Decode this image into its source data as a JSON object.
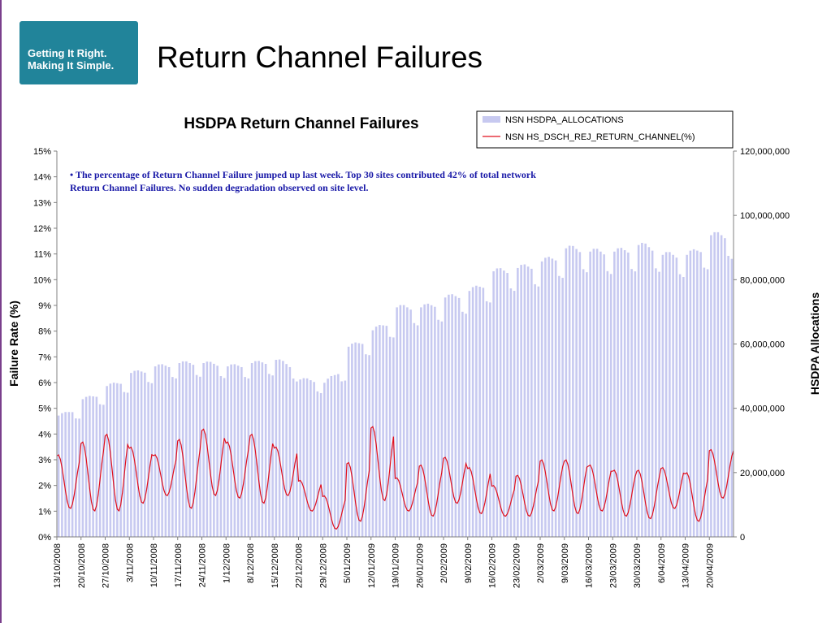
{
  "slide": {
    "title": "Return Channel Failures",
    "logo": {
      "line1": "Getting It Right.",
      "line2": "Making It Simple."
    }
  },
  "colors": {
    "logo_bg": "#21849a",
    "bar": "#c7c9f0",
    "line": "#e0101e",
    "annotation": "#1a1aa8"
  },
  "chart_data": {
    "type": "bar+line",
    "title": "HSDPA Return Channel Failures",
    "annotation": "• The percentage of Return Channel Failure jumped up last week. Top 30 sites contributed 42% of total network Return Channel Failures. No sudden degradation observed on site level.",
    "ylabel_left": "Failure Rate (%)",
    "ylabel_right": "HSDPA Allocations",
    "ylim_left": [
      0,
      15
    ],
    "ylim_right": [
      0,
      120000000
    ],
    "yticks_left": [
      "0%",
      "1%",
      "2%",
      "3%",
      "4%",
      "5%",
      "6%",
      "7%",
      "8%",
      "9%",
      "10%",
      "11%",
      "12%",
      "13%",
      "14%",
      "15%"
    ],
    "yticks_right": [
      "0",
      "20,000,000",
      "40,000,000",
      "60,000,000",
      "80,000,000",
      "100,000,000",
      "120,000,000"
    ],
    "xtick_labels": [
      "13/10/2008",
      "20/10/2008",
      "27/10/2008",
      "3/11/2008",
      "10/11/2008",
      "17/11/2008",
      "24/11/2008",
      "1/12/2008",
      "8/12/2008",
      "15/12/2008",
      "22/12/2008",
      "29/12/2008",
      "5/01/2009",
      "12/01/2009",
      "19/01/2009",
      "26/01/2009",
      "2/02/2009",
      "9/02/2009",
      "16/02/2009",
      "23/02/2009",
      "2/03/2009",
      "9/03/2009",
      "16/03/2009",
      "23/03/2009",
      "30/03/2009",
      "6/04/2009",
      "13/04/2009",
      "20/04/2009"
    ],
    "legend": {
      "position": "top-right",
      "entries": [
        "NSN HSDPA_ALLOCATIONS",
        "NSN HS_DSCH_REJ_RETURN_CHANNEL(%)"
      ]
    },
    "series": [
      {
        "name": "NSN HSDPA_ALLOCATIONS",
        "type": "bar",
        "axis": "right",
        "unit": "allocations per day",
        "weekly_avg": [
          37000000,
          42000000,
          46000000,
          50000000,
          52000000,
          53000000,
          53000000,
          52000000,
          53000000,
          54000000,
          48000000,
          47000000,
          58000000,
          63000000,
          70000000,
          70000000,
          73000000,
          75000000,
          81000000,
          82000000,
          84000000,
          88000000,
          87000000,
          87000000,
          89000000,
          86000000,
          86000000,
          92000000
        ]
      },
      {
        "name": "NSN HS_DSCH_REJ_RETURN_CHANNEL(%)",
        "type": "line",
        "axis": "left",
        "unit": "%",
        "weekly_peak": [
          3.2,
          3.7,
          4.0,
          3.5,
          3.2,
          3.8,
          4.2,
          3.7,
          4.0,
          3.5,
          2.2,
          1.6,
          2.9,
          4.3,
          2.3,
          2.8,
          3.1,
          2.7,
          2.0,
          2.4,
          3.0,
          3.0,
          2.8,
          2.6,
          2.6,
          2.7,
          2.5,
          3.4
        ],
        "weekly_trough": [
          1.1,
          1.0,
          1.0,
          1.3,
          1.6,
          1.1,
          1.6,
          1.5,
          1.3,
          1.6,
          1.0,
          0.3,
          0.6,
          1.4,
          1.0,
          0.8,
          1.3,
          0.9,
          0.8,
          0.8,
          1.0,
          0.9,
          1.0,
          0.8,
          0.7,
          1.1,
          0.6,
          1.5
        ]
      }
    ]
  }
}
